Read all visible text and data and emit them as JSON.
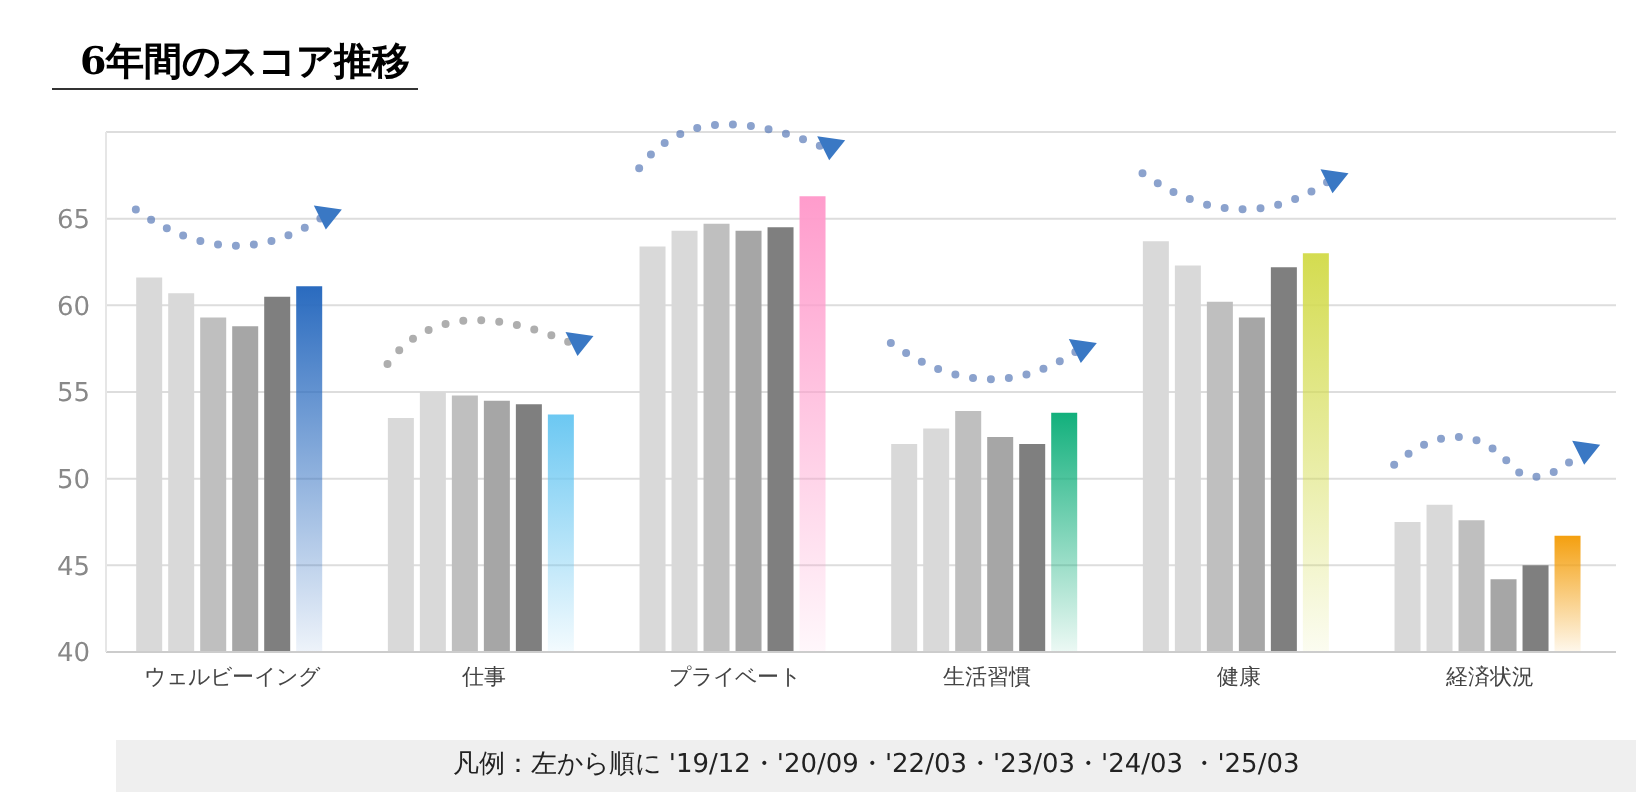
{
  "chart_data": {
    "type": "bar",
    "title": "6年間のスコア推移",
    "categories": [
      "ウェルビーイング",
      "仕事",
      "プライベート",
      "生活習慣",
      "健康",
      "経済状況"
    ],
    "series": [
      {
        "color": "#d9d9d9",
        "values": [
          61.6,
          53.5,
          63.4,
          52.0,
          63.7,
          47.5
        ]
      },
      {
        "color": "#d9d9d9",
        "values": [
          60.7,
          55.0,
          64.3,
          52.9,
          62.3,
          48.5
        ]
      },
      {
        "color": "#bfbfbf",
        "values": [
          59.3,
          54.8,
          64.7,
          53.9,
          60.2,
          47.6
        ]
      },
      {
        "color": "#a6a6a6",
        "values": [
          58.8,
          54.5,
          64.3,
          52.4,
          59.3,
          44.2
        ]
      },
      {
        "color": "#7f7f7f",
        "values": [
          60.5,
          54.3,
          64.5,
          52.0,
          62.2,
          45.0
        ]
      },
      {
        "colors": [
          "#2a6bbf",
          "#6cc8f2",
          "#ff9ccc",
          "#12b07c",
          "#d4dc50",
          "#f4a010"
        ],
        "values": [
          61.1,
          53.7,
          66.3,
          53.8,
          63.0,
          46.7
        ]
      }
    ],
    "ylim": [
      40,
      70
    ],
    "yticks": [
      40,
      45,
      50,
      55,
      60,
      65
    ],
    "grid": "y",
    "annotations": [
      "凡例：左から順に '19/12・'20/09・'22/03・'23/03・'24/03 ・'25/03"
    ]
  }
}
